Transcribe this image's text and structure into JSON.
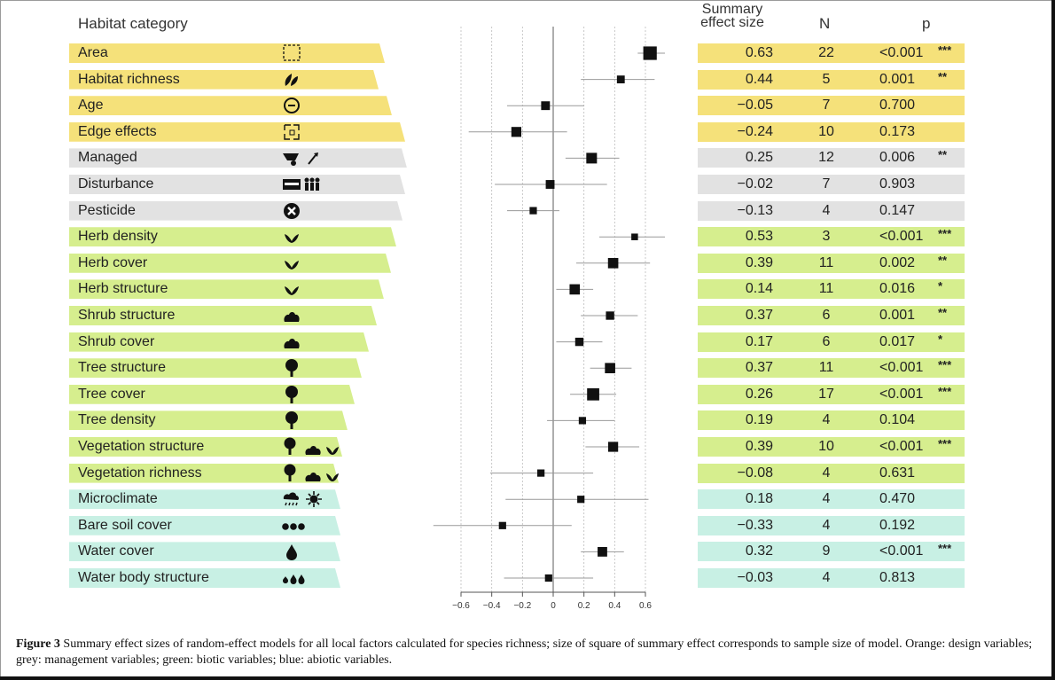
{
  "headers": {
    "habitat": "Habitat category",
    "summary_line1": "Summary",
    "summary_line2": "effect size",
    "n": "N",
    "p": "p"
  },
  "colors": {
    "design": "#f5e17a",
    "management": "#e2e2e2",
    "biotic": "#d6ee8e",
    "abiotic": "#c8f0e4"
  },
  "rows": [
    {
      "label": "Area",
      "icon": "dashed-square-icon",
      "group": "design",
      "es": "0.63",
      "n": "22",
      "p": "<0.001",
      "sig": "***"
    },
    {
      "label": "Habitat richness",
      "icon": "leaves-icon",
      "group": "design",
      "es": "0.44",
      "n": "5",
      "p": "0.001",
      "sig": "**"
    },
    {
      "label": "Age",
      "icon": "age-clock-icon",
      "group": "design",
      "es": "−0.05",
      "n": "7",
      "p": "0.700",
      "sig": ""
    },
    {
      "label": "Edge effects",
      "icon": "edge-square-icon",
      "group": "design",
      "es": "−0.24",
      "n": "10",
      "p": "0.173",
      "sig": ""
    },
    {
      "label": "Managed",
      "icon": "wheelbarrow-shovel-icon",
      "group": "management",
      "es": "0.25",
      "n": "12",
      "p": "0.006",
      "sig": "**"
    },
    {
      "label": "Disturbance",
      "icon": "people-disturbance-icon",
      "group": "management",
      "es": "−0.02",
      "n": "7",
      "p": "0.903",
      "sig": ""
    },
    {
      "label": "Pesticide",
      "icon": "pesticide-x-icon",
      "group": "management",
      "es": "−0.13",
      "n": "4",
      "p": "0.147",
      "sig": ""
    },
    {
      "label": "Herb density",
      "icon": "herb-icon",
      "group": "biotic",
      "es": "0.53",
      "n": "3",
      "p": "<0.001",
      "sig": "***"
    },
    {
      "label": "Herb cover",
      "icon": "herb-icon",
      "group": "biotic",
      "es": "0.39",
      "n": "11",
      "p": "0.002",
      "sig": "**"
    },
    {
      "label": "Herb structure",
      "icon": "herb-icon",
      "group": "biotic",
      "es": "0.14",
      "n": "11",
      "p": "0.016",
      "sig": "*"
    },
    {
      "label": "Shrub structure",
      "icon": "shrub-icon",
      "group": "biotic",
      "es": "0.37",
      "n": "6",
      "p": "0.001",
      "sig": "**"
    },
    {
      "label": "Shrub cover",
      "icon": "shrub-icon",
      "group": "biotic",
      "es": "0.17",
      "n": "6",
      "p": "0.017",
      "sig": "*"
    },
    {
      "label": "Tree structure",
      "icon": "tree-icon",
      "group": "biotic",
      "es": "0.37",
      "n": "11",
      "p": "<0.001",
      "sig": "***"
    },
    {
      "label": "Tree cover",
      "icon": "tree-icon",
      "group": "biotic",
      "es": "0.26",
      "n": "17",
      "p": "<0.001",
      "sig": "***"
    },
    {
      "label": "Tree density",
      "icon": "tree-icon",
      "group": "biotic",
      "es": "0.19",
      "n": "4",
      "p": "0.104",
      "sig": ""
    },
    {
      "label": "Vegetation structure",
      "icon": "tree-shrub-herb-icon",
      "group": "biotic",
      "es": "0.39",
      "n": "10",
      "p": "<0.001",
      "sig": "***"
    },
    {
      "label": "Vegetation richness",
      "icon": "tree-shrub-herb-icon",
      "group": "biotic",
      "es": "−0.08",
      "n": "4",
      "p": "0.631",
      "sig": ""
    },
    {
      "label": "Microclimate",
      "icon": "rain-sun-icon",
      "group": "abiotic",
      "es": "0.18",
      "n": "4",
      "p": "0.470",
      "sig": ""
    },
    {
      "label": "Bare soil cover",
      "icon": "soil-dots-icon",
      "group": "abiotic",
      "es": "−0.33",
      "n": "4",
      "p": "0.192",
      "sig": ""
    },
    {
      "label": "Water cover",
      "icon": "water-drop-icon",
      "group": "abiotic",
      "es": "0.32",
      "n": "9",
      "p": "<0.001",
      "sig": "***"
    },
    {
      "label": "Water body structure",
      "icon": "water-drops-icon",
      "group": "abiotic",
      "es": "−0.03",
      "n": "4",
      "p": "0.813",
      "sig": ""
    }
  ],
  "chart_data": {
    "type": "scatter",
    "xlim": [
      -0.6,
      0.6
    ],
    "xticks": [
      "−0.6",
      "−0.4",
      "−0.2",
      "0",
      "0.2",
      "0.4",
      "0.6"
    ],
    "xtick_values": [
      -0.6,
      -0.4,
      -0.2,
      0,
      0.2,
      0.4,
      0.6
    ],
    "grid": true,
    "categories": [
      "Area",
      "Habitat richness",
      "Age",
      "Edge effects",
      "Managed",
      "Disturbance",
      "Pesticide",
      "Herb density",
      "Herb cover",
      "Herb structure",
      "Shrub structure",
      "Shrub cover",
      "Tree structure",
      "Tree cover",
      "Tree density",
      "Vegetation structure",
      "Vegetation richness",
      "Microclimate",
      "Bare soil cover",
      "Water cover",
      "Water body structure"
    ],
    "effect": [
      0.63,
      0.44,
      -0.05,
      -0.24,
      0.25,
      -0.02,
      -0.13,
      0.53,
      0.39,
      0.14,
      0.37,
      0.17,
      0.37,
      0.26,
      0.19,
      0.39,
      -0.08,
      0.18,
      -0.33,
      0.32,
      -0.03
    ],
    "ci_low": [
      0.55,
      0.18,
      -0.3,
      -0.55,
      0.08,
      -0.38,
      -0.3,
      0.3,
      0.15,
      0.02,
      0.18,
      0.02,
      0.24,
      0.11,
      -0.04,
      0.21,
      -0.41,
      -0.31,
      -0.78,
      0.18,
      -0.32
    ],
    "ci_high": [
      0.73,
      0.66,
      0.2,
      0.09,
      0.43,
      0.35,
      0.04,
      0.76,
      0.63,
      0.26,
      0.55,
      0.32,
      0.51,
      0.41,
      0.4,
      0.56,
      0.26,
      0.62,
      0.12,
      0.46,
      0.26
    ],
    "n": [
      22,
      5,
      7,
      10,
      12,
      7,
      4,
      3,
      11,
      11,
      6,
      6,
      11,
      17,
      4,
      10,
      4,
      4,
      4,
      9,
      4
    ]
  },
  "caption": {
    "prefix": "Figure 3",
    "text": "Summary effect sizes of random-effect models for all local factors calculated for species richness; size of square of summary effect corresponds to sample size of model. Orange: design variables; grey: management variables; green: biotic variables; blue: abiotic variables."
  }
}
